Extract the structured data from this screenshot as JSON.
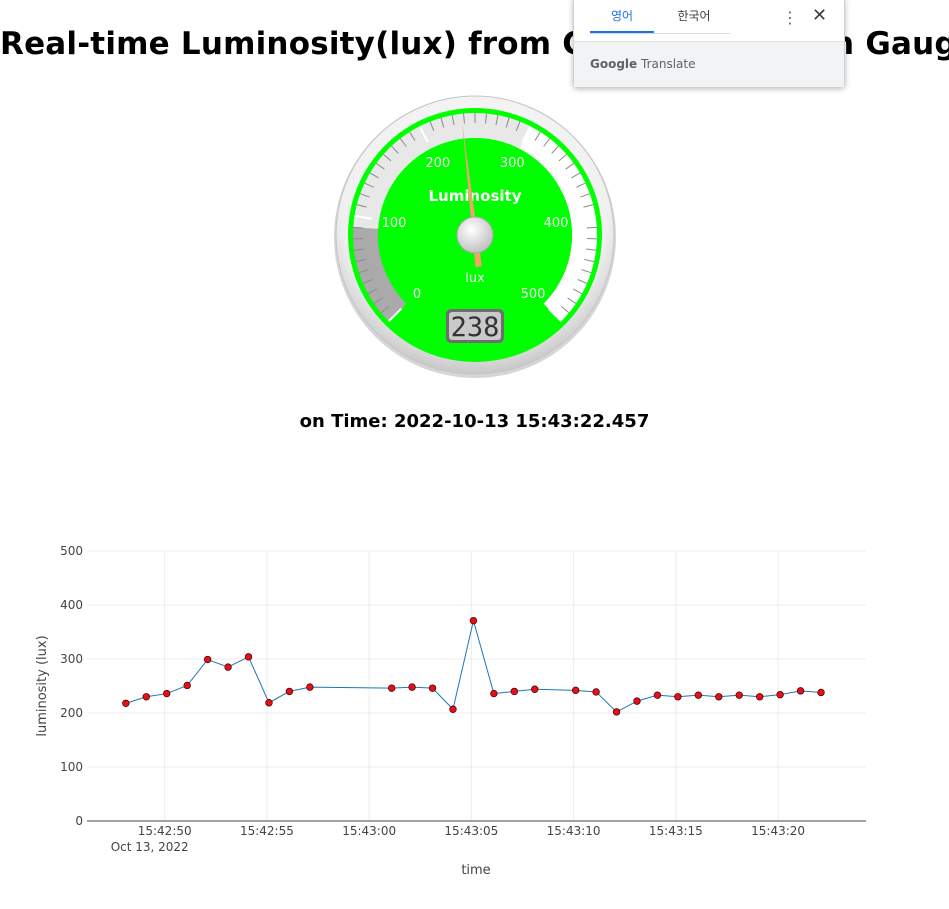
{
  "page": {
    "title": "Real-time Luminosity(lux) from Computer Vision Gauge",
    "time_line": "on Time: 2022-10-13 15:43:22.457"
  },
  "gauge": {
    "title": "Luminosity",
    "units": "lux",
    "value": 238,
    "value_text": "238",
    "min": 0,
    "max": 500,
    "major_ticks": [
      "0",
      "100",
      "200",
      "300",
      "400",
      "500"
    ],
    "colors": {
      "face": "#00ff00",
      "ring": "#00ff00",
      "band_low": "#aaaaaa",
      "band_mid": "#e8e8e8",
      "band_high": "#ffffff",
      "needle": "#f4a26a"
    }
  },
  "translate_popup": {
    "tab_source": "영어",
    "tab_target": "한국어",
    "more_icon": "⋮",
    "close_icon": "✕",
    "brand_google": "Google",
    "brand_translate": "Translate"
  },
  "chart_data": {
    "type": "line",
    "title": "",
    "xlabel": "time",
    "ylabel": "luminosity (lux)",
    "ylim": [
      0,
      500
    ],
    "yticks": [
      0,
      100,
      200,
      300,
      400,
      500
    ],
    "xlim": [
      "15:42:46.2",
      "15:43:24.3"
    ],
    "xticks": [
      {
        "t": "15:42:50",
        "label": "15:42:50",
        "sublabel": "Oct 13, 2022"
      },
      {
        "t": "15:42:55",
        "label": "15:42:55",
        "sublabel": ""
      },
      {
        "t": "15:43:00",
        "label": "15:43:00",
        "sublabel": ""
      },
      {
        "t": "15:43:05",
        "label": "15:43:05",
        "sublabel": ""
      },
      {
        "t": "15:43:10",
        "label": "15:43:10",
        "sublabel": ""
      },
      {
        "t": "15:43:15",
        "label": "15:43:15",
        "sublabel": ""
      },
      {
        "t": "15:43:20",
        "label": "15:43:20",
        "sublabel": ""
      }
    ],
    "grid": true,
    "series": [
      {
        "line_color": "#1f77b4",
        "marker_color": "#e3111a",
        "x": [
          "15:42:48.1",
          "15:42:49.1",
          "15:42:50.1",
          "15:42:51.1",
          "15:42:52.1",
          "15:42:53.1",
          "15:42:54.1",
          "15:42:55.1",
          "15:42:56.1",
          "15:42:57.1",
          "15:43:01.1",
          "15:43:02.1",
          "15:43:03.1",
          "15:43:04.1",
          "15:43:05.1",
          "15:43:06.1",
          "15:43:07.1",
          "15:43:08.1",
          "15:43:10.1",
          "15:43:11.1",
          "15:43:12.1",
          "15:43:13.1",
          "15:43:14.1",
          "15:43:15.1",
          "15:43:16.1",
          "15:43:17.1",
          "15:43:18.1",
          "15:43:19.1",
          "15:43:20.1",
          "15:43:21.1",
          "15:43:22.1"
        ],
        "y": [
          218,
          230,
          236,
          251,
          299,
          285,
          304,
          219,
          240,
          248,
          246,
          248,
          246,
          207,
          371,
          236,
          240,
          244,
          242,
          239,
          202,
          222,
          233,
          230,
          233,
          230,
          233,
          230,
          234,
          241,
          238
        ]
      }
    ]
  }
}
